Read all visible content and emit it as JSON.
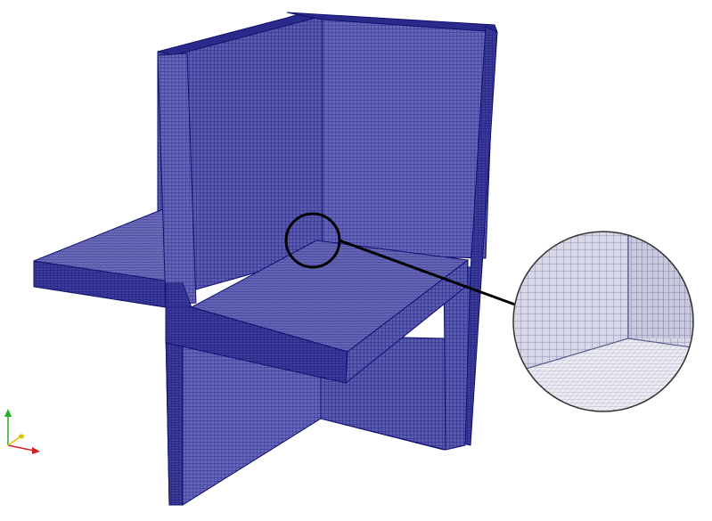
{
  "viewport": {
    "background": "#ffffff"
  },
  "mesh": {
    "line_color": "#1a1a8c",
    "face_light": "#6666b3",
    "face_mid": "#5656a8",
    "face_dark": "#3d3d99",
    "edge_color": "#101070"
  },
  "magnifier": {
    "circle_stroke": "#000000",
    "zoom_face_light": "#e6e6ef",
    "zoom_face_wall": "#cfcfe0",
    "zoom_line_color": "#7a7aa8"
  },
  "axes_triad": {
    "x_axis_color": "#d42020",
    "y_axis_color": "#20b020",
    "z_axis_color": "#e0c000"
  }
}
